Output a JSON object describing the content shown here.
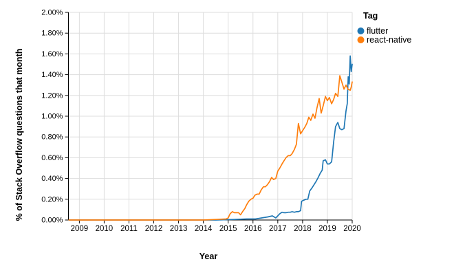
{
  "legend": {
    "title": "Tag"
  },
  "chart_data": {
    "type": "line",
    "title": "",
    "xlabel": "Year",
    "ylabel": "% of Stack Overflow questions that month",
    "xlim": [
      2008.56,
      2020.0
    ],
    "ylim": [
      0,
      2
    ],
    "grid": true,
    "legend_position": "top-right",
    "x_ticks": [
      2009,
      2010,
      2011,
      2012,
      2013,
      2014,
      2015,
      2016,
      2017,
      2018,
      2019,
      2020
    ],
    "y_ticks": [
      {
        "v": 0.0,
        "label": "0.00%"
      },
      {
        "v": 0.2,
        "label": "0.20%"
      },
      {
        "v": 0.4,
        "label": "0.40%"
      },
      {
        "v": 0.6,
        "label": "0.60%"
      },
      {
        "v": 0.8,
        "label": "0.80%"
      },
      {
        "v": 1.0,
        "label": "1.00%"
      },
      {
        "v": 1.2,
        "label": "1.20%"
      },
      {
        "v": 1.4,
        "label": "1.40%"
      },
      {
        "v": 1.6,
        "label": "1.60%"
      },
      {
        "v": 1.8,
        "label": "1.80%"
      },
      {
        "v": 2.0,
        "label": "2.00%"
      }
    ],
    "series": [
      {
        "name": "flutter",
        "color": "#1f77b4",
        "points": [
          [
            2008.58,
            0
          ],
          [
            2009.5,
            0
          ],
          [
            2010.5,
            0
          ],
          [
            2011.5,
            0
          ],
          [
            2012.5,
            0
          ],
          [
            2013.5,
            0
          ],
          [
            2014.5,
            0
          ],
          [
            2015.25,
            0.005
          ],
          [
            2015.75,
            0.01
          ],
          [
            2016.1,
            0.01
          ],
          [
            2016.35,
            0.02
          ],
          [
            2016.6,
            0.03
          ],
          [
            2016.78,
            0.04
          ],
          [
            2016.92,
            0.02
          ],
          [
            2017.0,
            0.04
          ],
          [
            2017.08,
            0.06
          ],
          [
            2017.17,
            0.075
          ],
          [
            2017.25,
            0.07
          ],
          [
            2017.33,
            0.07
          ],
          [
            2017.42,
            0.075
          ],
          [
            2017.5,
            0.075
          ],
          [
            2017.58,
            0.08
          ],
          [
            2017.67,
            0.075
          ],
          [
            2017.75,
            0.08
          ],
          [
            2017.83,
            0.08
          ],
          [
            2017.92,
            0.09
          ],
          [
            2017.96,
            0.18
          ],
          [
            2018.04,
            0.19
          ],
          [
            2018.13,
            0.2
          ],
          [
            2018.21,
            0.2
          ],
          [
            2018.29,
            0.28
          ],
          [
            2018.38,
            0.31
          ],
          [
            2018.46,
            0.34
          ],
          [
            2018.54,
            0.37
          ],
          [
            2018.63,
            0.41
          ],
          [
            2018.71,
            0.45
          ],
          [
            2018.79,
            0.48
          ],
          [
            2018.83,
            0.57
          ],
          [
            2018.92,
            0.58
          ],
          [
            2019.0,
            0.54
          ],
          [
            2019.08,
            0.54
          ],
          [
            2019.17,
            0.56
          ],
          [
            2019.25,
            0.75
          ],
          [
            2019.33,
            0.9
          ],
          [
            2019.42,
            0.94
          ],
          [
            2019.5,
            0.88
          ],
          [
            2019.58,
            0.87
          ],
          [
            2019.67,
            0.88
          ],
          [
            2019.75,
            1.05
          ],
          [
            2019.8,
            1.12
          ],
          [
            2019.84,
            1.38
          ],
          [
            2019.88,
            1.31
          ],
          [
            2019.92,
            1.58
          ],
          [
            2019.96,
            1.43
          ],
          [
            2020.0,
            1.5
          ]
        ]
      },
      {
        "name": "react-native",
        "color": "#ff7f0e",
        "points": [
          [
            2008.58,
            0
          ],
          [
            2009.5,
            0
          ],
          [
            2010.5,
            0
          ],
          [
            2011.5,
            0
          ],
          [
            2012.5,
            0
          ],
          [
            2013.5,
            0
          ],
          [
            2014.0,
            0
          ],
          [
            2014.5,
            0.005
          ],
          [
            2014.92,
            0.01
          ],
          [
            2015.0,
            0.02
          ],
          [
            2015.08,
            0.06
          ],
          [
            2015.17,
            0.08
          ],
          [
            2015.25,
            0.07
          ],
          [
            2015.33,
            0.07
          ],
          [
            2015.42,
            0.07
          ],
          [
            2015.5,
            0.05
          ],
          [
            2015.58,
            0.08
          ],
          [
            2015.67,
            0.11
          ],
          [
            2015.75,
            0.15
          ],
          [
            2015.83,
            0.18
          ],
          [
            2015.92,
            0.2
          ],
          [
            2016.0,
            0.21
          ],
          [
            2016.08,
            0.24
          ],
          [
            2016.17,
            0.25
          ],
          [
            2016.25,
            0.25
          ],
          [
            2016.33,
            0.29
          ],
          [
            2016.42,
            0.32
          ],
          [
            2016.5,
            0.32
          ],
          [
            2016.58,
            0.34
          ],
          [
            2016.67,
            0.37
          ],
          [
            2016.75,
            0.41
          ],
          [
            2016.83,
            0.39
          ],
          [
            2016.92,
            0.4
          ],
          [
            2017.0,
            0.47
          ],
          [
            2017.08,
            0.5
          ],
          [
            2017.17,
            0.54
          ],
          [
            2017.25,
            0.57
          ],
          [
            2017.33,
            0.6
          ],
          [
            2017.42,
            0.62
          ],
          [
            2017.5,
            0.62
          ],
          [
            2017.58,
            0.64
          ],
          [
            2017.67,
            0.68
          ],
          [
            2017.75,
            0.73
          ],
          [
            2017.83,
            0.93
          ],
          [
            2017.92,
            0.83
          ],
          [
            2018.0,
            0.86
          ],
          [
            2018.08,
            0.89
          ],
          [
            2018.17,
            0.93
          ],
          [
            2018.25,
            0.99
          ],
          [
            2018.33,
            0.96
          ],
          [
            2018.42,
            1.02
          ],
          [
            2018.5,
            0.98
          ],
          [
            2018.58,
            1.08
          ],
          [
            2018.67,
            1.17
          ],
          [
            2018.75,
            1.03
          ],
          [
            2018.83,
            1.1
          ],
          [
            2018.92,
            1.19
          ],
          [
            2019.0,
            1.15
          ],
          [
            2019.08,
            1.18
          ],
          [
            2019.17,
            1.12
          ],
          [
            2019.25,
            1.16
          ],
          [
            2019.33,
            1.22
          ],
          [
            2019.42,
            1.19
          ],
          [
            2019.5,
            1.39
          ],
          [
            2019.58,
            1.33
          ],
          [
            2019.67,
            1.26
          ],
          [
            2019.75,
            1.3
          ],
          [
            2019.83,
            1.26
          ],
          [
            2019.92,
            1.25
          ],
          [
            2019.96,
            1.28
          ],
          [
            2020.0,
            1.33
          ]
        ]
      }
    ],
    "style": {
      "gridline_color": "#dddddd",
      "axis_color": "#000000",
      "background": "#ffffff"
    }
  }
}
